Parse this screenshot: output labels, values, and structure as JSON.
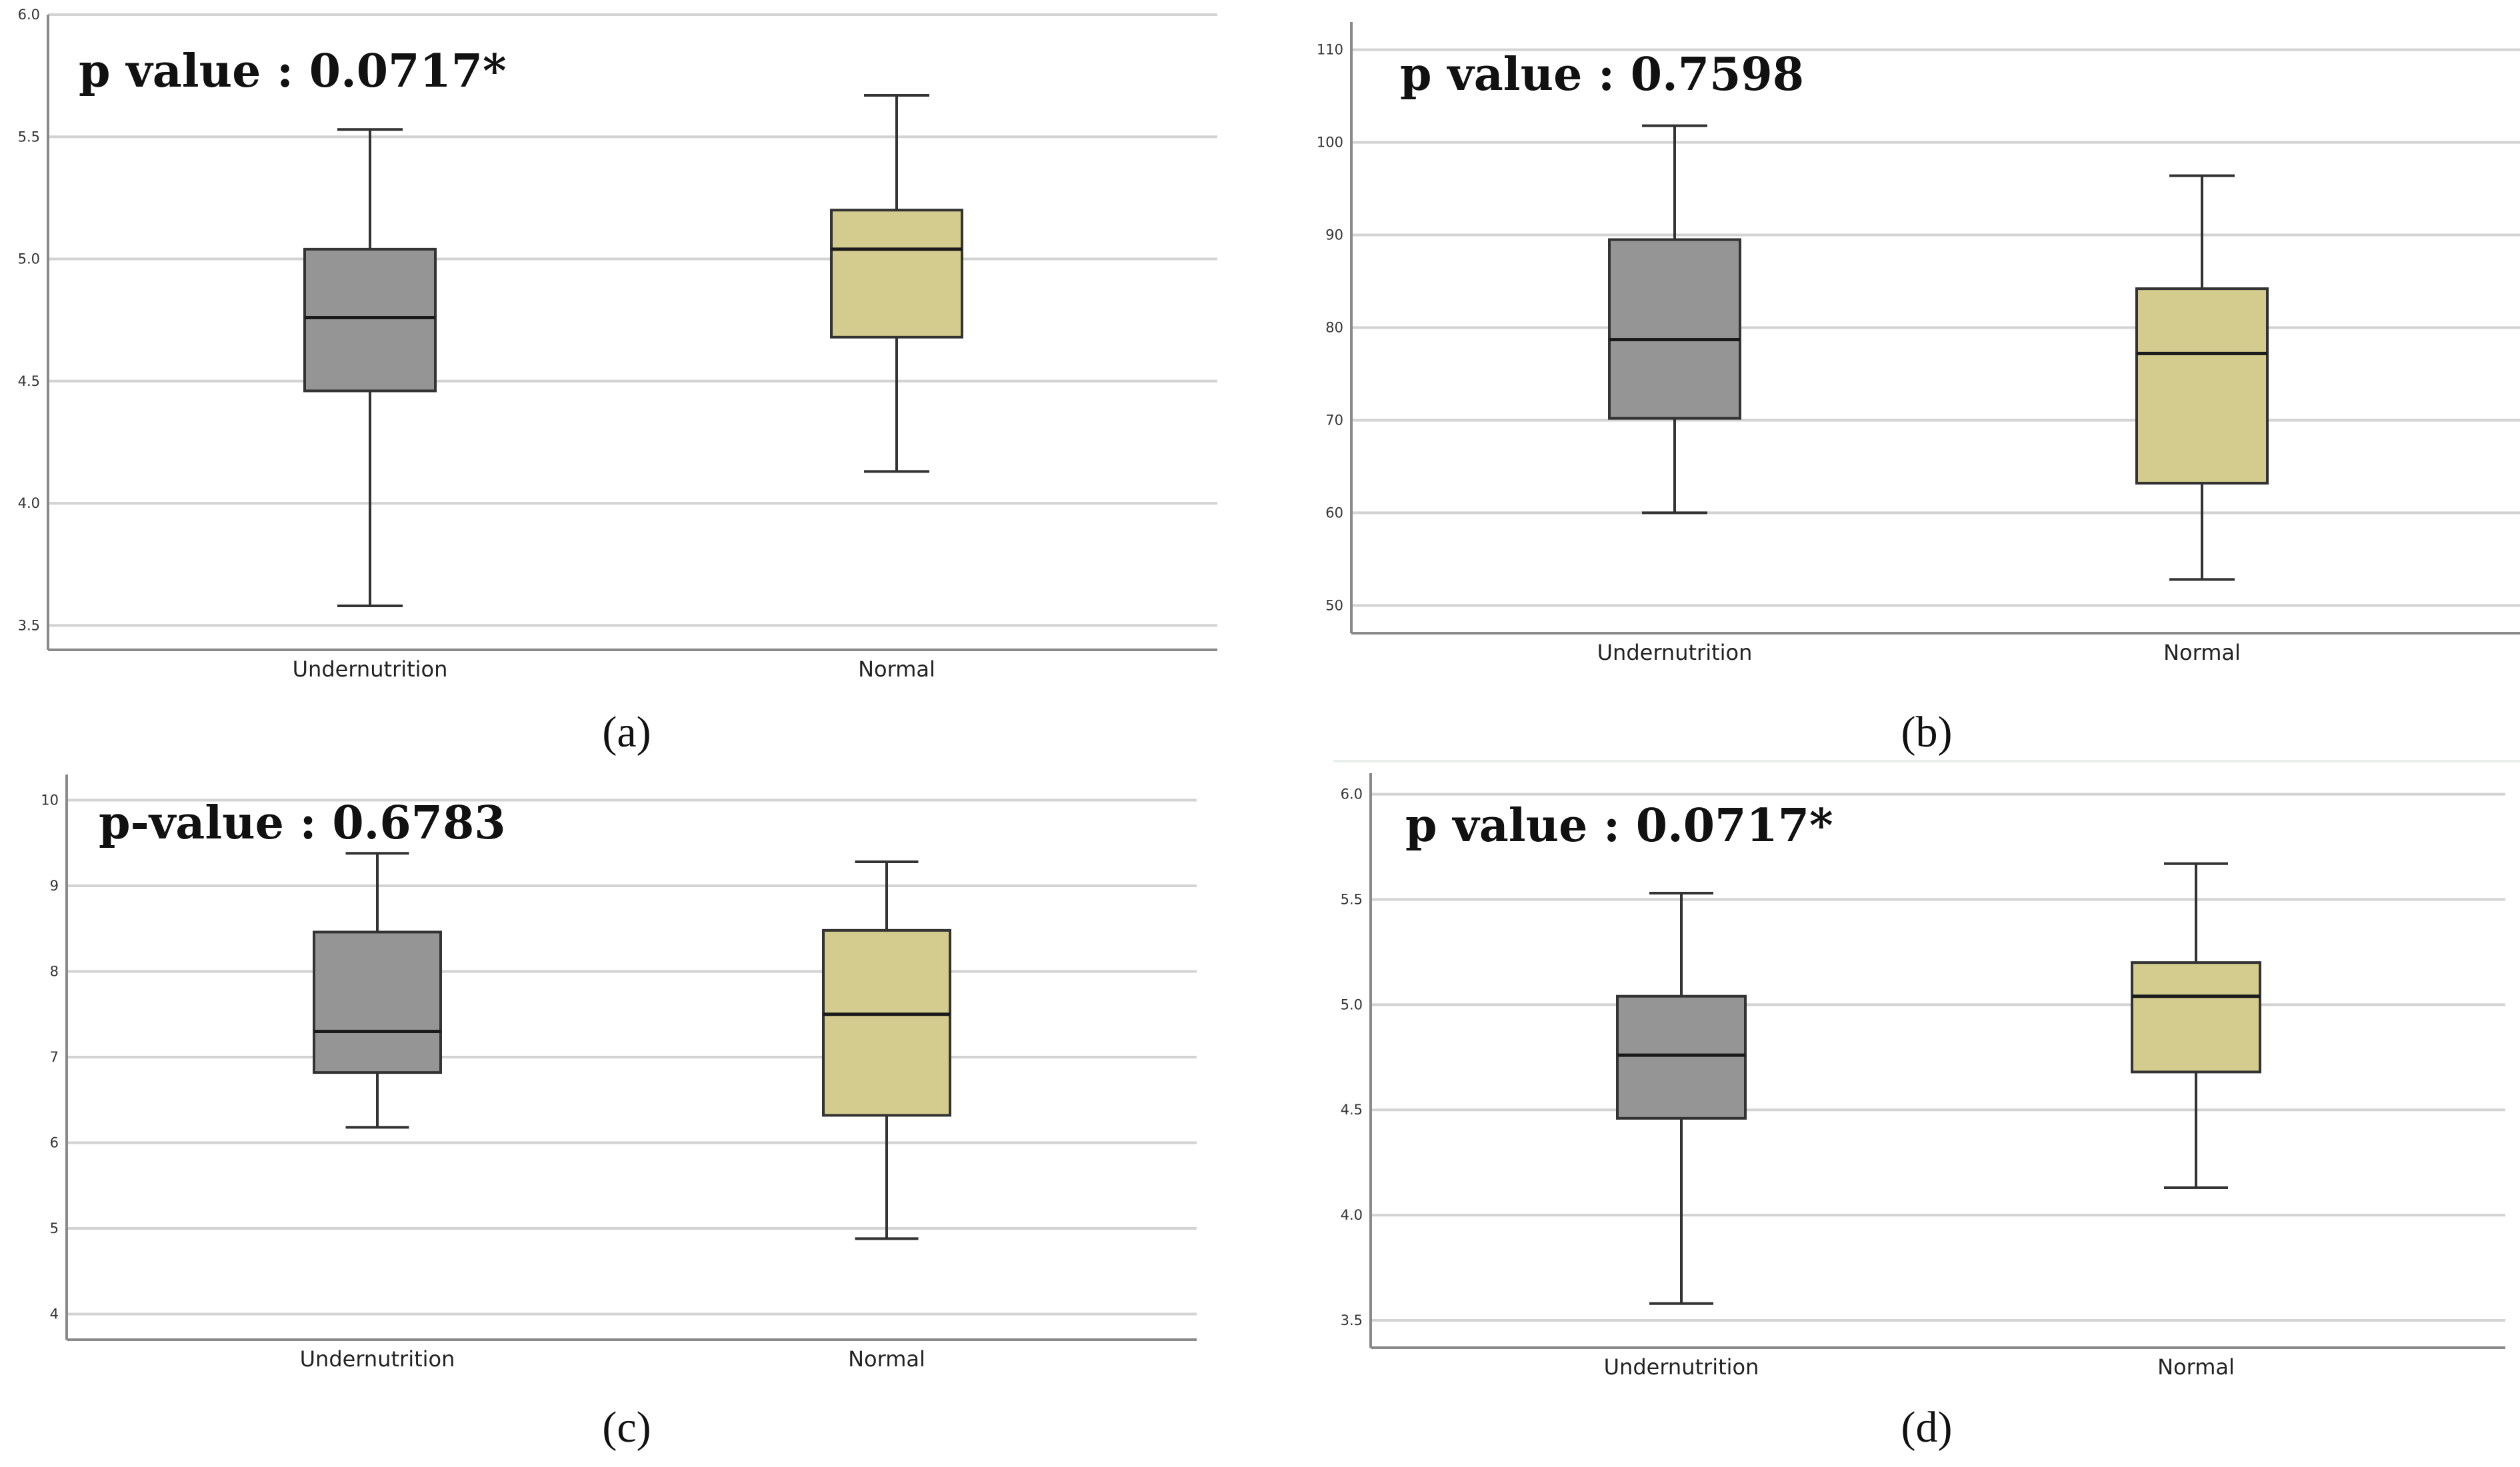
{
  "figure": {
    "colors": {
      "undernutrition_fill": "#959595",
      "normal_fill": "#d4cc8e",
      "box_stroke": "#333333",
      "grid": "#d3d3d3",
      "axis": "#8a8a8a"
    }
  },
  "chart_data": [
    {
      "id": "a",
      "type": "boxplot",
      "caption": "(a)",
      "annotation": "p value : 0.0717*",
      "categories": [
        "Undernutrition",
        "Normal"
      ],
      "ylim": [
        3.4,
        6.0
      ],
      "yticks": [
        3.5,
        4.0,
        4.5,
        5.0,
        5.5,
        6.0
      ],
      "ytick_labels": [
        "3.5",
        "4.0",
        "4.5",
        "5.0",
        "5.5",
        "6.0"
      ],
      "grid": true,
      "boxes": [
        {
          "category": "Undernutrition",
          "min": 3.58,
          "q1": 4.46,
          "median": 4.76,
          "q3": 5.04,
          "max": 5.53
        },
        {
          "category": "Normal",
          "min": 4.13,
          "q1": 4.68,
          "median": 5.04,
          "q3": 5.2,
          "max": 5.67
        }
      ]
    },
    {
      "id": "b",
      "type": "boxplot",
      "caption": "(b)",
      "annotation": "p value : 0.7598",
      "categories": [
        "Undernutrition",
        "Normal"
      ],
      "ylim": [
        47,
        113
      ],
      "yticks": [
        50,
        60,
        70,
        80,
        90,
        100,
        110
      ],
      "ytick_labels": [
        "50",
        "60",
        "70",
        "80",
        "90",
        "100",
        "110"
      ],
      "grid": true,
      "boxes": [
        {
          "category": "Undernutrition",
          "min": 60,
          "q1": 70.2,
          "median": 78.7,
          "q3": 89.5,
          "max": 101.8
        },
        {
          "category": "Normal",
          "min": 52.8,
          "q1": 63.2,
          "median": 77.2,
          "q3": 84.2,
          "max": 96.4
        }
      ]
    },
    {
      "id": "c",
      "type": "boxplot",
      "caption": "(c)",
      "annotation": "p-value : 0.6783",
      "categories": [
        "Undernutrition",
        "Normal"
      ],
      "ylim": [
        3.7,
        10.3
      ],
      "yticks": [
        4,
        5,
        6,
        7,
        8,
        9,
        10
      ],
      "ytick_labels": [
        "4",
        "5",
        "6",
        "7",
        "8",
        "9",
        "10"
      ],
      "grid": true,
      "boxes": [
        {
          "category": "Undernutrition",
          "min": 6.18,
          "q1": 6.82,
          "median": 7.3,
          "q3": 8.46,
          "max": 9.38
        },
        {
          "category": "Normal",
          "min": 4.88,
          "q1": 6.32,
          "median": 7.5,
          "q3": 8.48,
          "max": 9.28
        }
      ]
    },
    {
      "id": "d",
      "type": "boxplot",
      "caption": "(d)",
      "annotation": "p value : 0.0717*",
      "categories": [
        "Undernutrition",
        "Normal"
      ],
      "ylim": [
        3.37,
        6.1
      ],
      "yticks": [
        3.5,
        4.0,
        4.5,
        5.0,
        5.5,
        6.0
      ],
      "ytick_labels": [
        "3.5",
        "4.0",
        "4.5",
        "5.0",
        "5.5",
        "6.0"
      ],
      "grid": true,
      "boxes": [
        {
          "category": "Undernutrition",
          "min": 3.58,
          "q1": 4.46,
          "median": 4.76,
          "q3": 5.04,
          "max": 5.53
        },
        {
          "category": "Normal",
          "min": 4.13,
          "q1": 4.68,
          "median": 5.04,
          "q3": 5.2,
          "max": 5.67
        }
      ]
    }
  ]
}
